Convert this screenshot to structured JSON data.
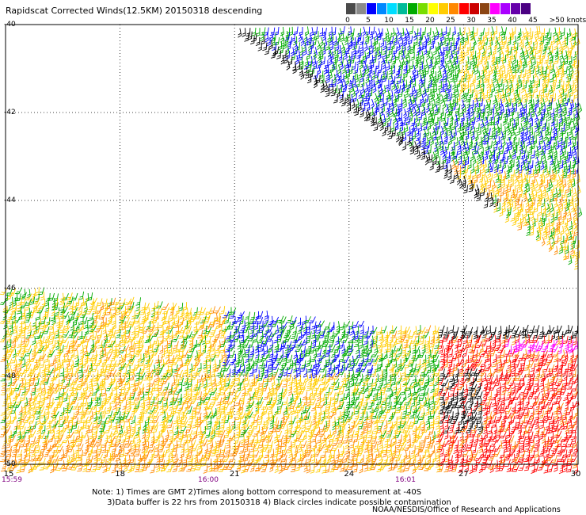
{
  "title": "Rapidscat Corrected Winds(12.5KM) 20150318 descending",
  "colorbar": {
    "units_label": ">50 knots",
    "swatches": [
      {
        "color": "#4a4a4a"
      },
      {
        "color": "#8a8a8a"
      },
      {
        "color": "#0000ff"
      },
      {
        "color": "#0088ff"
      },
      {
        "color": "#00ddff"
      },
      {
        "color": "#00bb99"
      },
      {
        "color": "#00aa00"
      },
      {
        "color": "#77dd00"
      },
      {
        "color": "#ffff00"
      },
      {
        "color": "#ffcc00"
      },
      {
        "color": "#ff8800"
      },
      {
        "color": "#ff0000"
      },
      {
        "color": "#cc0000"
      },
      {
        "color": "#8b4513"
      },
      {
        "color": "#ff00ff"
      },
      {
        "color": "#aa00ff"
      },
      {
        "color": "#6600aa"
      },
      {
        "color": "#4b0082"
      }
    ],
    "ticks": [
      "0",
      "5",
      "10",
      "15",
      "20",
      "25",
      "30",
      "35",
      "40",
      "45"
    ]
  },
  "map": {
    "latitudes": [
      "-40",
      "-42",
      "-44",
      "-46",
      "-48",
      "-50"
    ],
    "longitudes": [
      "15",
      "18",
      "21",
      "24",
      "27",
      "30"
    ],
    "times": [
      "15:59",
      "16:00",
      "16:01"
    ],
    "barb_colors": {
      "calm": "#000000",
      "light": "#0000ff",
      "medium": "#00aa00",
      "moderate": "#ffcc00",
      "fresh": "#ff8800",
      "strong": "#ff0000",
      "gale": "#ff00ff"
    }
  },
  "note": "Note: 1) Times are GMT 2)Times along bottom correspond to measurement at -40S\n      3)Data buffer is 22 hrs from 20150318 4) Black circles indicate possible contamination",
  "credit": "NOAA/NESDIS/Office of Research and Applications"
}
